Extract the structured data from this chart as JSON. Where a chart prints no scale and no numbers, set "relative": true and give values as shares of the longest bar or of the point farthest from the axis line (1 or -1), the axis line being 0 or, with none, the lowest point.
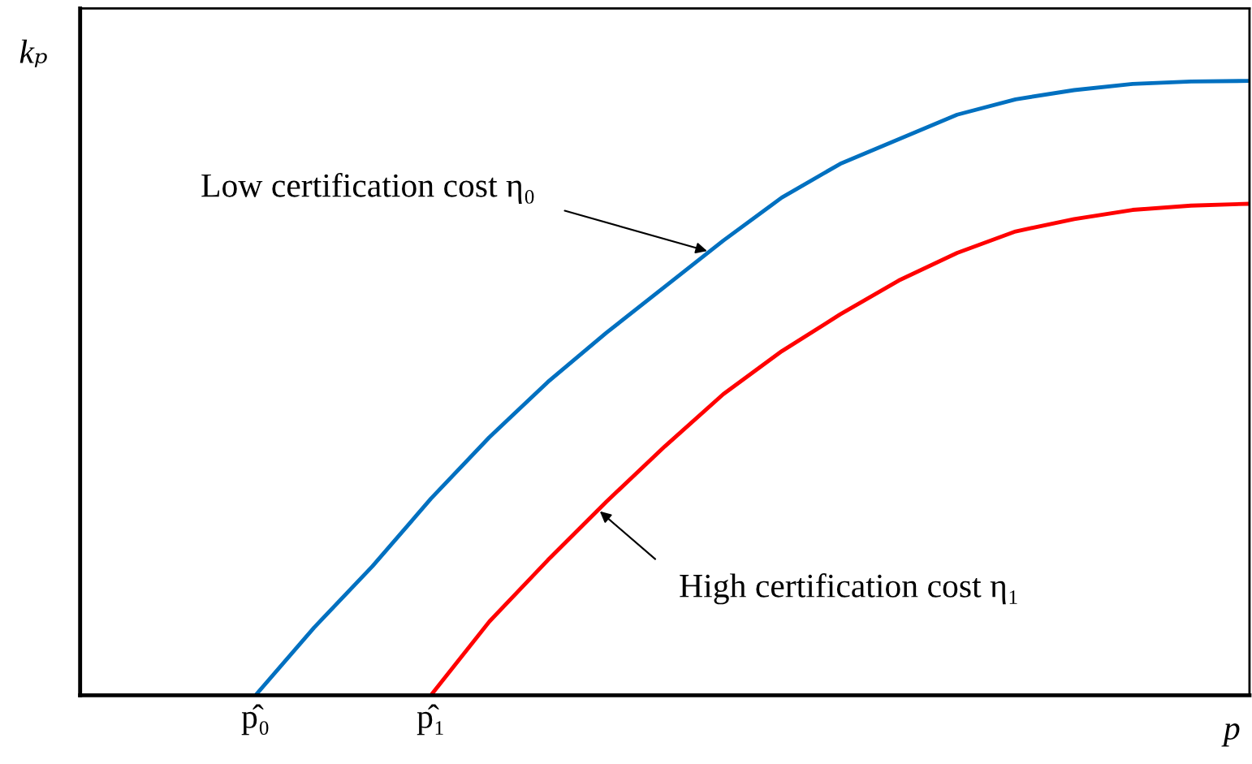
{
  "chart_data": {
    "type": "line",
    "relative": true,
    "xlabel": "p",
    "ylabel": "kₚ",
    "categories": [
      null,
      null,
      null,
      "p̂₀",
      null,
      null,
      "p̂₁",
      null,
      null,
      null,
      null,
      null,
      null,
      null,
      null,
      null,
      null,
      null,
      null,
      null,
      null
    ],
    "grid": false,
    "legend": false,
    "marker": "none",
    "line_style": "solid",
    "tick_labels": "x",
    "series": [
      {
        "color": "#0070c0",
        "values": [
          null,
          null,
          null,
          0,
          0.11,
          0.21,
          0.32,
          0.42,
          0.51,
          0.59,
          0.665,
          0.74,
          0.81,
          0.865,
          0.905,
          0.945,
          0.97,
          0.985,
          0.995,
          0.999,
          1
        ]
      },
      {
        "color": "#ff0000",
        "values": [
          null,
          null,
          null,
          null,
          null,
          null,
          0,
          0.12,
          0.22,
          0.315,
          0.405,
          0.49,
          0.56,
          0.62,
          0.675,
          0.72,
          0.755,
          0.775,
          0.79,
          0.797,
          0.8
        ]
      }
    ],
    "annotations": [
      "Low certification cost η₀",
      "High certification cost η₁"
    ]
  }
}
